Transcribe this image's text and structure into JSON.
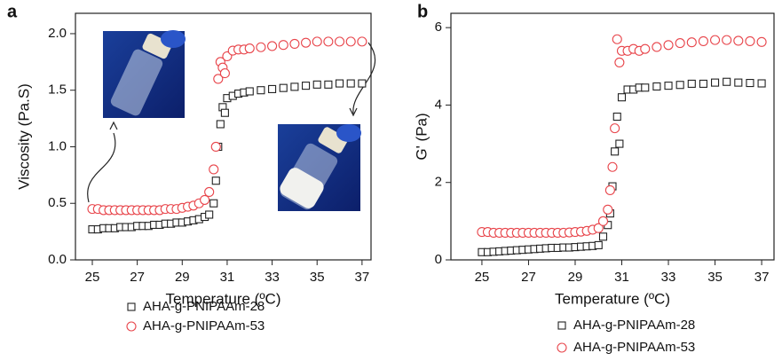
{
  "chart_data": [
    {
      "type": "scatter",
      "panel_label": "a",
      "x_label": "Temperature (ºC)",
      "y_label": "Viscosity (Pa.S)",
      "x": [
        25,
        25.25,
        25.5,
        25.75,
        26,
        26.25,
        26.5,
        26.75,
        27,
        27.25,
        27.5,
        27.75,
        28,
        28.25,
        28.5,
        28.75,
        29,
        29.25,
        29.5,
        29.75,
        30,
        30.2,
        30.4,
        30.5,
        30.6,
        30.7,
        30.8,
        30.9,
        31,
        31.25,
        31.5,
        31.75,
        32,
        32.5,
        33,
        33.5,
        34,
        34.5,
        35,
        35.5,
        36,
        36.5,
        37
      ],
      "series": [
        {
          "name": "AHA-g-PNIPAAm-28",
          "color": "#222222",
          "marker": "square",
          "values": [
            0.27,
            0.27,
            0.28,
            0.28,
            0.28,
            0.29,
            0.29,
            0.29,
            0.3,
            0.3,
            0.3,
            0.31,
            0.31,
            0.32,
            0.32,
            0.33,
            0.33,
            0.34,
            0.35,
            0.36,
            0.38,
            0.4,
            0.5,
            0.7,
            1.0,
            1.2,
            1.35,
            1.3,
            1.43,
            1.45,
            1.47,
            1.48,
            1.49,
            1.5,
            1.51,
            1.52,
            1.53,
            1.54,
            1.55,
            1.55,
            1.56,
            1.56,
            1.56
          ]
        },
        {
          "name": "AHA-g-PNIPAAm-53",
          "color": "#e8454b",
          "marker": "circle",
          "values": [
            0.45,
            0.45,
            0.44,
            0.44,
            0.44,
            0.44,
            0.44,
            0.44,
            0.44,
            0.44,
            0.44,
            0.44,
            0.44,
            0.45,
            0.45,
            0.45,
            0.46,
            0.47,
            0.48,
            0.5,
            0.53,
            0.6,
            0.8,
            1.0,
            1.6,
            1.75,
            1.7,
            1.65,
            1.8,
            1.85,
            1.86,
            1.86,
            1.87,
            1.88,
            1.89,
            1.9,
            1.91,
            1.92,
            1.93,
            1.93,
            1.93,
            1.93,
            1.93
          ]
        }
      ],
      "xlim": [
        24.25,
        37.4
      ],
      "xticks": [
        25,
        27,
        29,
        31,
        33,
        35,
        37
      ],
      "ylim": [
        0,
        2.18
      ],
      "yticks": [
        {
          "value": 0,
          "label": "0.0"
        },
        0.5,
        {
          "value": 1,
          "label": "1.0"
        },
        1.5,
        {
          "value": 2,
          "label": "2.0"
        }
      ]
    },
    {
      "type": "scatter",
      "panel_label": "b",
      "x_label": "Temperature (ºC)",
      "y_label": "G' (Pa)",
      "x": [
        25,
        25.25,
        25.5,
        25.75,
        26,
        26.25,
        26.5,
        26.75,
        27,
        27.25,
        27.5,
        27.75,
        28,
        28.25,
        28.5,
        28.75,
        29,
        29.25,
        29.5,
        29.75,
        30,
        30.2,
        30.4,
        30.5,
        30.6,
        30.7,
        30.8,
        30.9,
        31,
        31.25,
        31.5,
        31.75,
        32,
        32.5,
        33,
        33.5,
        34,
        34.5,
        35,
        35.5,
        36,
        36.5,
        37
      ],
      "series": [
        {
          "name": "AHA-g-PNIPAAm-28",
          "color": "#222222",
          "marker": "square",
          "values": [
            0.2,
            0.2,
            0.21,
            0.22,
            0.23,
            0.24,
            0.25,
            0.26,
            0.27,
            0.28,
            0.29,
            0.3,
            0.31,
            0.31,
            0.32,
            0.32,
            0.33,
            0.34,
            0.35,
            0.36,
            0.38,
            0.6,
            0.9,
            1.2,
            1.9,
            2.8,
            3.7,
            3.0,
            4.2,
            4.4,
            4.4,
            4.45,
            4.45,
            4.48,
            4.5,
            4.52,
            4.55,
            4.55,
            4.58,
            4.6,
            4.58,
            4.57,
            4.56
          ]
        },
        {
          "name": "AHA-g-PNIPAAm-53",
          "color": "#e8454b",
          "marker": "circle",
          "values": [
            0.72,
            0.72,
            0.7,
            0.7,
            0.7,
            0.7,
            0.7,
            0.7,
            0.7,
            0.7,
            0.7,
            0.7,
            0.7,
            0.7,
            0.7,
            0.71,
            0.72,
            0.73,
            0.75,
            0.78,
            0.82,
            1.0,
            1.3,
            1.8,
            2.4,
            3.4,
            5.7,
            5.1,
            5.4,
            5.4,
            5.45,
            5.4,
            5.45,
            5.5,
            5.55,
            5.6,
            5.62,
            5.65,
            5.68,
            5.68,
            5.66,
            5.65,
            5.63
          ]
        }
      ],
      "xlim": [
        23.67,
        37.53
      ],
      "xticks": [
        25,
        27,
        29,
        31,
        33,
        35,
        37
      ],
      "ylim": [
        0,
        6.37
      ],
      "yticks": [
        0,
        2,
        4,
        6
      ]
    }
  ]
}
